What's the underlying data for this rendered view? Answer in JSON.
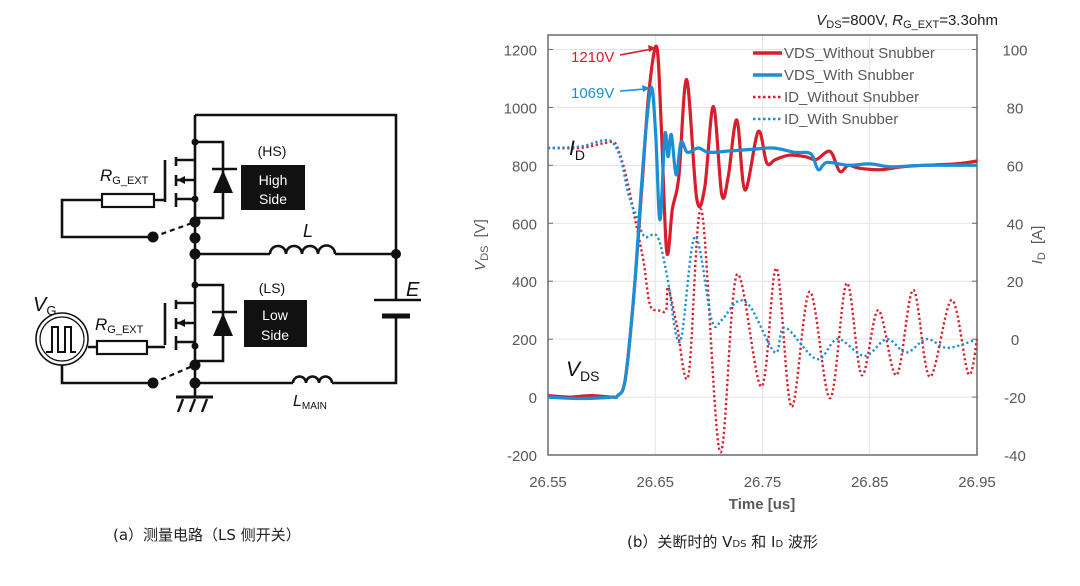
{
  "circuit": {
    "hs_tag": "(HS)",
    "hs_box": [
      "High",
      "Side"
    ],
    "ls_tag": "(LS)",
    "ls_box": [
      "Low",
      "Side"
    ],
    "rg_label": {
      "main": "R",
      "sub": "G_EXT"
    },
    "vg_label": {
      "main": "V",
      "sub": "G"
    },
    "l_label": "L",
    "lmain_label": {
      "main": "L",
      "sub": "MAIN"
    },
    "e_label": "E"
  },
  "captions": {
    "a": "(a）测量电路（LS 侧开关）",
    "b_pre": "(b）关断时的 V",
    "b_sub1": "DS",
    "b_mid": " 和 I",
    "b_sub2": "D",
    "b_post": " 波形"
  },
  "colors": {
    "red": "#d81e2c",
    "blue": "#1b8fd6",
    "grid": "#e3e3e3",
    "axis": "#6b6b6b"
  },
  "chart_data": {
    "type": "line",
    "title": {
      "v": "V",
      "v_sub": "DS",
      "v_rest": "=800V, ",
      "r": "R",
      "r_sub": "G_EXT",
      "r_rest": "=3.3ohm"
    },
    "xlabel": "Time [us]",
    "ylabel_left": {
      "main": "V",
      "sub": "DS",
      "unit": "[V]"
    },
    "ylabel_right": {
      "main": "I",
      "sub": "D",
      "unit": "[A]"
    },
    "xlim": [
      26.55,
      26.95
    ],
    "ylim_left": [
      -200,
      1250
    ],
    "ylim_right": [
      -40,
      105
    ],
    "x_ticks": [
      "26.55",
      "26.65",
      "26.75",
      "26.85",
      "26.95"
    ],
    "y_ticks_left": [
      "-200",
      "0",
      "200",
      "400",
      "600",
      "800",
      "1000",
      "1200"
    ],
    "y_ticks_right": [
      "-40",
      "-20",
      "0",
      "20",
      "40",
      "60",
      "80",
      "100"
    ],
    "grid": true,
    "legend_position": "top-right",
    "annotations": {
      "peak_without": "1210V",
      "peak_with": "1069V",
      "id_tag": {
        "main": "I",
        "sub": "D"
      },
      "vds_tag": {
        "main": "V",
        "sub": "DS"
      }
    },
    "series": [
      {
        "name": "VDS_Without Snubber",
        "axis": "left",
        "style": "solid",
        "color": "#d81e2c",
        "points": [
          [
            26.55,
            5
          ],
          [
            26.57,
            0
          ],
          [
            26.59,
            5
          ],
          [
            26.61,
            0
          ],
          [
            26.615,
            5
          ],
          [
            26.622,
            60
          ],
          [
            26.63,
            350
          ],
          [
            26.638,
            750
          ],
          [
            26.644,
            1050
          ],
          [
            26.6513,
            1210
          ],
          [
            26.6555,
            950
          ],
          [
            26.6607,
            502
          ],
          [
            26.666,
            650
          ],
          [
            26.672,
            760
          ],
          [
            26.6793,
            1096
          ],
          [
            26.6886,
            688
          ],
          [
            26.696,
            720
          ],
          [
            26.7042,
            1003
          ],
          [
            26.712,
            700
          ],
          [
            26.718,
            760
          ],
          [
            26.726,
            957
          ],
          [
            26.7337,
            715
          ],
          [
            26.746,
            917
          ],
          [
            26.754,
            808
          ],
          [
            26.762,
            820
          ],
          [
            26.775,
            835
          ],
          [
            26.79,
            830
          ],
          [
            26.8,
            820
          ],
          [
            26.813,
            848
          ],
          [
            26.822,
            779
          ],
          [
            26.83,
            800
          ],
          [
            26.84,
            790
          ],
          [
            26.86,
            785
          ],
          [
            26.88,
            795
          ],
          [
            26.9,
            800
          ],
          [
            26.93,
            805
          ],
          [
            26.95,
            815
          ]
        ]
      },
      {
        "name": "VDS_With Snubber",
        "axis": "left",
        "style": "solid",
        "color": "#1b8fd6",
        "points": [
          [
            26.55,
            0
          ],
          [
            26.58,
            -5
          ],
          [
            26.61,
            0
          ],
          [
            26.615,
            5
          ],
          [
            26.622,
            60
          ],
          [
            26.63,
            350
          ],
          [
            26.637,
            720
          ],
          [
            26.642,
            950
          ],
          [
            26.6467,
            1069
          ],
          [
            26.6505,
            900
          ],
          [
            26.6544,
            612
          ],
          [
            26.659,
            906
          ],
          [
            26.662,
            830
          ],
          [
            26.665,
            906
          ],
          [
            26.6695,
            767
          ],
          [
            26.674,
            880
          ],
          [
            26.68,
            845
          ],
          [
            26.69,
            860
          ],
          [
            26.7,
            845
          ],
          [
            26.72,
            850
          ],
          [
            26.74,
            855
          ],
          [
            26.76,
            860
          ],
          [
            26.78,
            845
          ],
          [
            26.795,
            840
          ],
          [
            26.802,
            785
          ],
          [
            26.81,
            810
          ],
          [
            26.83,
            800
          ],
          [
            26.85,
            805
          ],
          [
            26.87,
            795
          ],
          [
            26.9,
            800
          ],
          [
            26.95,
            800
          ]
        ]
      },
      {
        "name": "ID_Without Snubber",
        "axis": "right",
        "style": "dotted",
        "color": "#d81e2c",
        "points": [
          [
            26.55,
            66
          ],
          [
            26.58,
            66
          ],
          [
            26.6,
            67.5
          ],
          [
            26.61,
            68
          ],
          [
            26.615,
            66
          ],
          [
            26.623,
            56
          ],
          [
            26.632,
            40
          ],
          [
            26.639,
            27
          ],
          [
            26.645,
            12
          ],
          [
            26.653,
            10
          ],
          [
            26.66,
            10
          ],
          [
            26.662,
            18
          ],
          [
            26.67,
            5
          ],
          [
            26.681,
            -12.4
          ],
          [
            26.693,
            44.6
          ],
          [
            26.7104,
            -38.9
          ],
          [
            26.726,
            22.2
          ],
          [
            26.749,
            -16.4
          ],
          [
            26.763,
            24.5
          ],
          [
            26.777,
            -23.4
          ],
          [
            26.794,
            16.4
          ],
          [
            26.813,
            -20.4
          ],
          [
            26.8285,
            19.3
          ],
          [
            26.8425,
            -12.4
          ],
          [
            26.858,
            10
          ],
          [
            26.875,
            -12.4
          ],
          [
            26.8906,
            17
          ],
          [
            26.906,
            -13
          ],
          [
            26.9264,
            13.5
          ],
          [
            26.942,
            -12
          ],
          [
            26.95,
            0
          ]
        ]
      },
      {
        "name": "ID_With Snubber",
        "axis": "right",
        "style": "dotted",
        "color": "#1b8fd6",
        "points": [
          [
            26.55,
            66
          ],
          [
            26.58,
            66.5
          ],
          [
            26.6,
            68.5
          ],
          [
            26.61,
            68
          ],
          [
            26.618,
            62
          ],
          [
            26.625,
            50
          ],
          [
            26.633,
            42
          ],
          [
            26.64,
            35.4
          ],
          [
            26.652,
            35.4
          ],
          [
            26.661,
            22
          ],
          [
            26.673,
            -0.9
          ],
          [
            26.687,
            35.4
          ],
          [
            26.7026,
            6.6
          ],
          [
            26.712,
            6.6
          ],
          [
            26.726,
            12.9
          ],
          [
            26.739,
            11
          ],
          [
            26.7617,
            -4.6
          ],
          [
            26.771,
            4
          ],
          [
            26.8005,
            -6.9
          ],
          [
            26.82,
            0
          ],
          [
            26.845,
            -5.8
          ],
          [
            26.866,
            0
          ],
          [
            26.884,
            -4.6
          ],
          [
            26.903,
            0
          ],
          [
            26.922,
            -3
          ],
          [
            26.947,
            -0.5
          ]
        ]
      }
    ]
  }
}
